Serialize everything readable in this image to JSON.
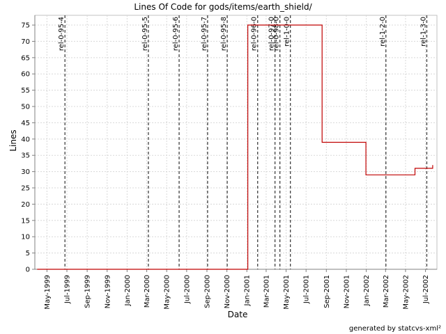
{
  "chart_data": {
    "type": "line",
    "title": "Lines Of Code for gods/items/earth_shield/",
    "xlabel": "Date",
    "ylabel": "Lines",
    "footer": "generated by statcvs-xml²",
    "x_range": [
      "1999-03-25",
      "2002-08-05"
    ],
    "ylim": [
      0,
      78
    ],
    "y_ticks": [
      0,
      5,
      10,
      15,
      20,
      25,
      30,
      35,
      40,
      45,
      50,
      55,
      60,
      65,
      70,
      75
    ],
    "x_ticks": [
      {
        "label": "May-1999",
        "date": "1999-05-01"
      },
      {
        "label": "Jul-1999",
        "date": "1999-07-01"
      },
      {
        "label": "Sep-1999",
        "date": "1999-09-01"
      },
      {
        "label": "Nov-1999",
        "date": "1999-11-01"
      },
      {
        "label": "Jan-2000",
        "date": "2000-01-01"
      },
      {
        "label": "Mar-2000",
        "date": "2000-03-01"
      },
      {
        "label": "May-2000",
        "date": "2000-05-01"
      },
      {
        "label": "Jul-2000",
        "date": "2000-07-01"
      },
      {
        "label": "Sep-2000",
        "date": "2000-09-01"
      },
      {
        "label": "Nov-2000",
        "date": "2000-11-01"
      },
      {
        "label": "Jan-2001",
        "date": "2001-01-01"
      },
      {
        "label": "Mar-2001",
        "date": "2001-03-01"
      },
      {
        "label": "May-2001",
        "date": "2001-05-01"
      },
      {
        "label": "Jul-2001",
        "date": "2001-07-01"
      },
      {
        "label": "Sep-2001",
        "date": "2001-09-01"
      },
      {
        "label": "Nov-2001",
        "date": "2001-11-01"
      },
      {
        "label": "Jan-2002",
        "date": "2002-01-01"
      },
      {
        "label": "Mar-2002",
        "date": "2002-03-01"
      },
      {
        "label": "May-2002",
        "date": "2002-05-01"
      },
      {
        "label": "Jul-2002",
        "date": "2002-07-01"
      }
    ],
    "grid": true,
    "line_color": "#c00000",
    "marker_color": "#404040",
    "series": [
      {
        "points": [
          {
            "x": "1999-04-01",
            "y": 0
          },
          {
            "x": "2001-01-04",
            "y": 0
          },
          {
            "x": "2001-01-04",
            "y": 75
          },
          {
            "x": "2001-08-19",
            "y": 75
          },
          {
            "x": "2001-08-19",
            "y": 39
          },
          {
            "x": "2001-12-31",
            "y": 39
          },
          {
            "x": "2001-12-31",
            "y": 29
          },
          {
            "x": "2002-05-30",
            "y": 29
          },
          {
            "x": "2002-05-30",
            "y": 31
          },
          {
            "x": "2002-07-23",
            "y": 31
          },
          {
            "x": "2002-07-23",
            "y": 32
          }
        ]
      }
    ],
    "tags": [
      {
        "label": "rel-0-95-4",
        "date": "1999-06-25"
      },
      {
        "label": "rel-0-95-5",
        "date": "2000-03-06"
      },
      {
        "label": "rel-0-95-6",
        "date": "2000-06-08"
      },
      {
        "label": "rel-0-95-7",
        "date": "2000-09-03"
      },
      {
        "label": "rel-0-95-8",
        "date": "2000-11-02"
      },
      {
        "label": "rel-0-96-0",
        "date": "2001-02-03"
      },
      {
        "label": "rel-0-97-0",
        "date": "2001-03-28"
      },
      {
        "label": "rel-0-98-0",
        "date": "2001-04-12"
      },
      {
        "label": "rel-1-0-0",
        "date": "2001-05-14"
      },
      {
        "label": "rel-1-2-0",
        "date": "2002-03-02"
      },
      {
        "label": "rel-1-3-0",
        "date": "2002-07-05"
      }
    ]
  }
}
